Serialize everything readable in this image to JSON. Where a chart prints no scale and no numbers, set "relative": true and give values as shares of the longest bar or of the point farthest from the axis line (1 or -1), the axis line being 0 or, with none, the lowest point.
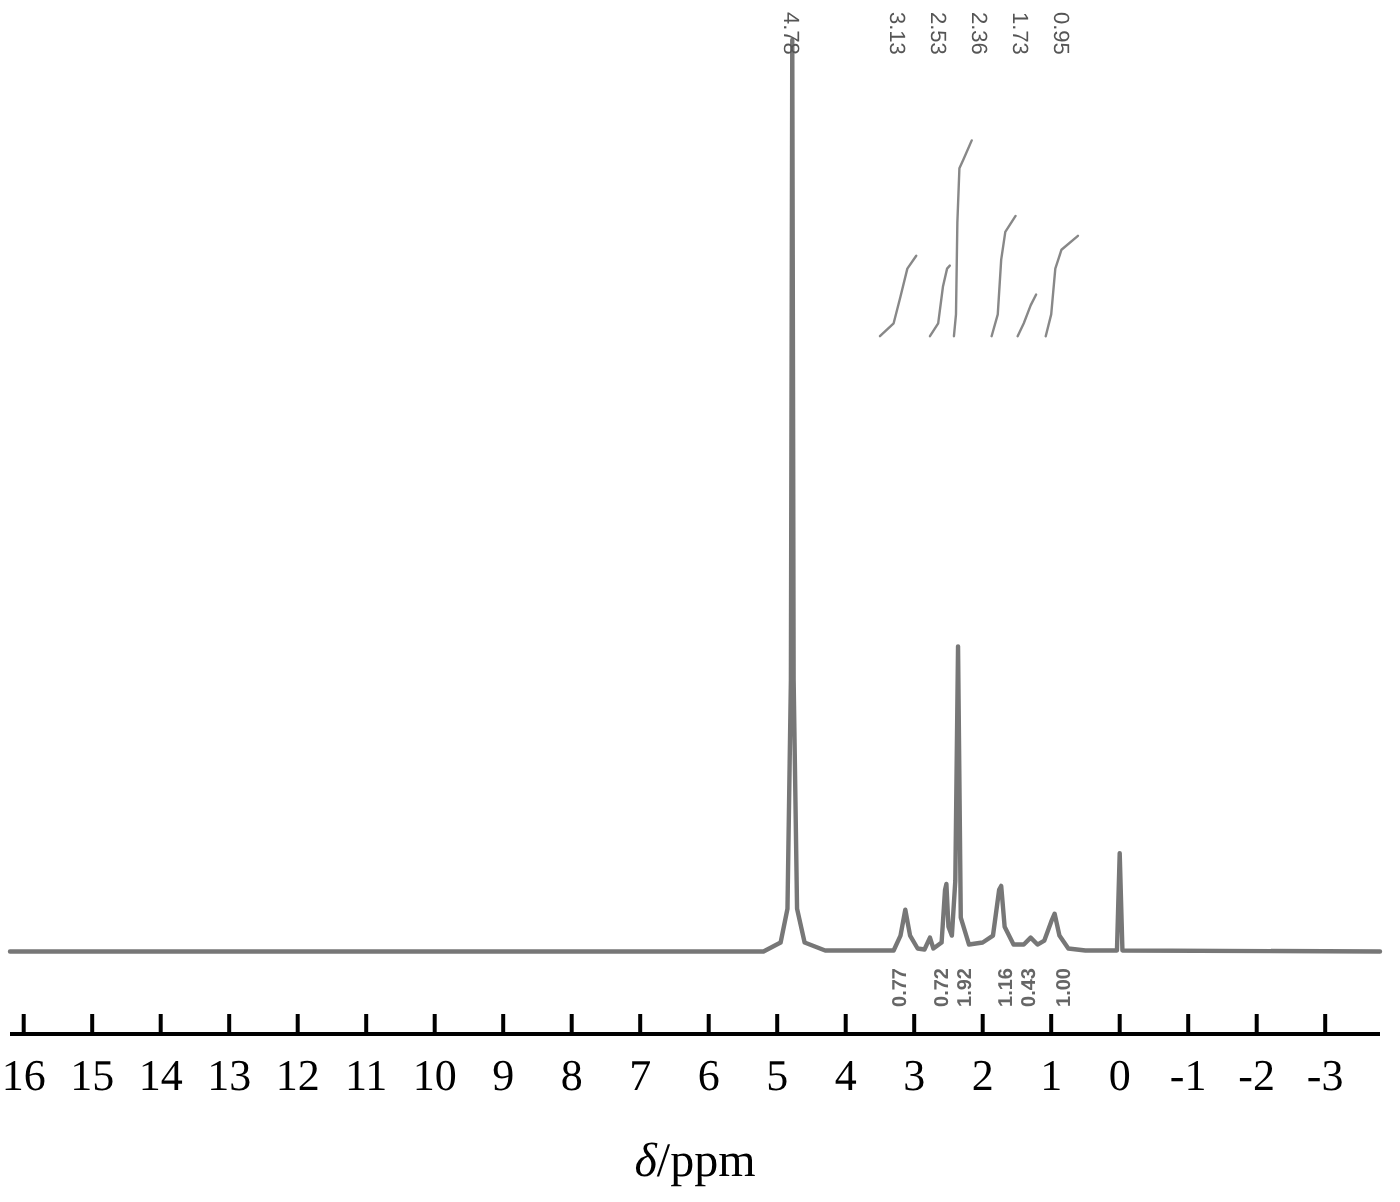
{
  "chart_data": {
    "type": "line",
    "relative": true,
    "xlabel": "δ/ppm",
    "xlim": [
      16.2,
      -3.8
    ],
    "xticks": [
      16,
      15,
      14,
      13,
      12,
      11,
      10,
      9,
      8,
      7,
      6,
      5,
      4,
      3,
      2,
      1,
      0,
      -1,
      -2,
      -3
    ],
    "grid": false,
    "line_style": "solid",
    "series": [
      {
        "color": "#777777",
        "x": [
          16.2,
          5.2,
          4.95,
          4.85,
          4.8,
          4.78,
          4.76,
          4.71,
          4.6,
          4.3,
          3.3,
          3.2,
          3.13,
          3.06,
          2.95,
          2.85,
          2.77,
          2.72,
          2.6,
          2.55,
          2.53,
          2.5,
          2.45,
          2.4,
          2.36,
          2.32,
          2.2,
          2.0,
          1.85,
          1.76,
          1.73,
          1.68,
          1.55,
          1.4,
          1.3,
          1.2,
          1.1,
          1.0,
          0.95,
          0.88,
          0.75,
          0.5,
          0.04,
          0.0,
          -0.04,
          -3.8
        ],
        "values": [
          0.083,
          0.083,
          0.092,
          0.126,
          0.356,
          1.0,
          0.356,
          0.126,
          0.092,
          0.084,
          0.084,
          0.099,
          0.125,
          0.099,
          0.086,
          0.085,
          0.097,
          0.086,
          0.092,
          0.145,
          0.151,
          0.108,
          0.099,
          0.154,
          0.39,
          0.117,
          0.09,
          0.092,
          0.099,
          0.145,
          0.149,
          0.108,
          0.09,
          0.09,
          0.097,
          0.09,
          0.094,
          0.113,
          0.121,
          0.099,
          0.086,
          0.084,
          0.084,
          0.182,
          0.084,
          0.083
        ]
      },
      {
        "color": "#888888",
        "x": [
          3.5,
          3.3,
          3.2,
          3.1,
          2.97
        ],
        "values": [
          0.702,
          0.715,
          0.742,
          0.77,
          0.783
        ]
      },
      {
        "color": "#888888",
        "x": [
          2.77,
          2.65,
          2.58,
          2.52,
          2.48
        ],
        "values": [
          0.702,
          0.715,
          0.752,
          0.77,
          0.773
        ]
      },
      {
        "color": "#888888",
        "x": [
          2.42,
          2.39,
          2.37,
          2.34,
          2.28,
          2.16
        ],
        "values": [
          0.702,
          0.724,
          0.816,
          0.871,
          0.88,
          0.899
        ]
      },
      {
        "color": "#888888",
        "x": [
          1.87,
          1.78,
          1.73,
          1.67,
          1.52
        ],
        "values": [
          0.702,
          0.724,
          0.779,
          0.807,
          0.823
        ]
      },
      {
        "color": "#888888",
        "x": [
          1.49,
          1.4,
          1.3,
          1.22
        ],
        "values": [
          0.702,
          0.715,
          0.733,
          0.744
        ]
      },
      {
        "color": "#888888",
        "x": [
          1.08,
          1.0,
          0.94,
          0.85,
          0.61
        ],
        "values": [
          0.702,
          0.724,
          0.77,
          0.789,
          0.803
        ]
      }
    ],
    "annotations": [
      "4.78",
      "3.13",
      "2.53",
      "2.36",
      "1.73",
      "0.95",
      "0.77",
      "0.72",
      "1.92",
      "1.16",
      "0.43",
      "1.00"
    ]
  }
}
